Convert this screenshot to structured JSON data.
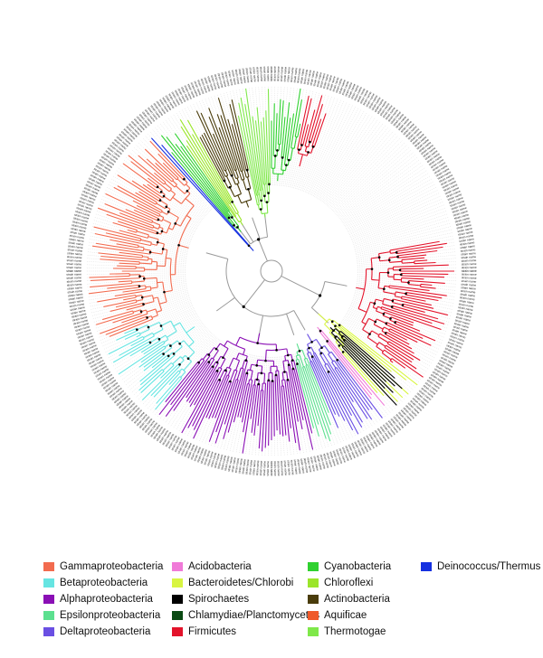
{
  "figure": {
    "leaf_count": 360,
    "leaf_label_text": "strain name"
  },
  "legend": {
    "columns": [
      [
        {
          "label": "Gammaproteobacteria",
          "color": "#f26b4f"
        },
        {
          "label": "Betaproteobacteria",
          "color": "#66e5e2"
        },
        {
          "label": "Alphaproteobacteria",
          "color": "#8a0fb5"
        },
        {
          "label": "Epsilonproteobacteria",
          "color": "#5ce08f"
        },
        {
          "label": "Deltaproteobacteria",
          "color": "#6a4fe3"
        }
      ],
      [
        {
          "label": "Acidobacteria",
          "color": "#f07ad8"
        },
        {
          "label": "Bacteroidetes/Chlorobi",
          "color": "#d8f542"
        },
        {
          "label": "Spirochaetes",
          "color": "#000000"
        },
        {
          "label": "Chlamydiae/Planctomycetes",
          "color": "#0b4a14"
        },
        {
          "label": "Firmicutes",
          "color": "#e3132b"
        }
      ],
      [
        {
          "label": "Cyanobacteria",
          "color": "#2fd12f"
        },
        {
          "label": "Chloroflexi",
          "color": "#9be52b"
        },
        {
          "label": "Actinobacteria",
          "color": "#4a3c0b"
        },
        {
          "label": "Aquificae",
          "color": "#ef5a2a"
        },
        {
          "label": "Thermotogae",
          "color": "#7fe84a"
        }
      ],
      [
        {
          "label": "Deinococcus/Thermus",
          "color": "#1530e0"
        }
      ]
    ]
  }
}
